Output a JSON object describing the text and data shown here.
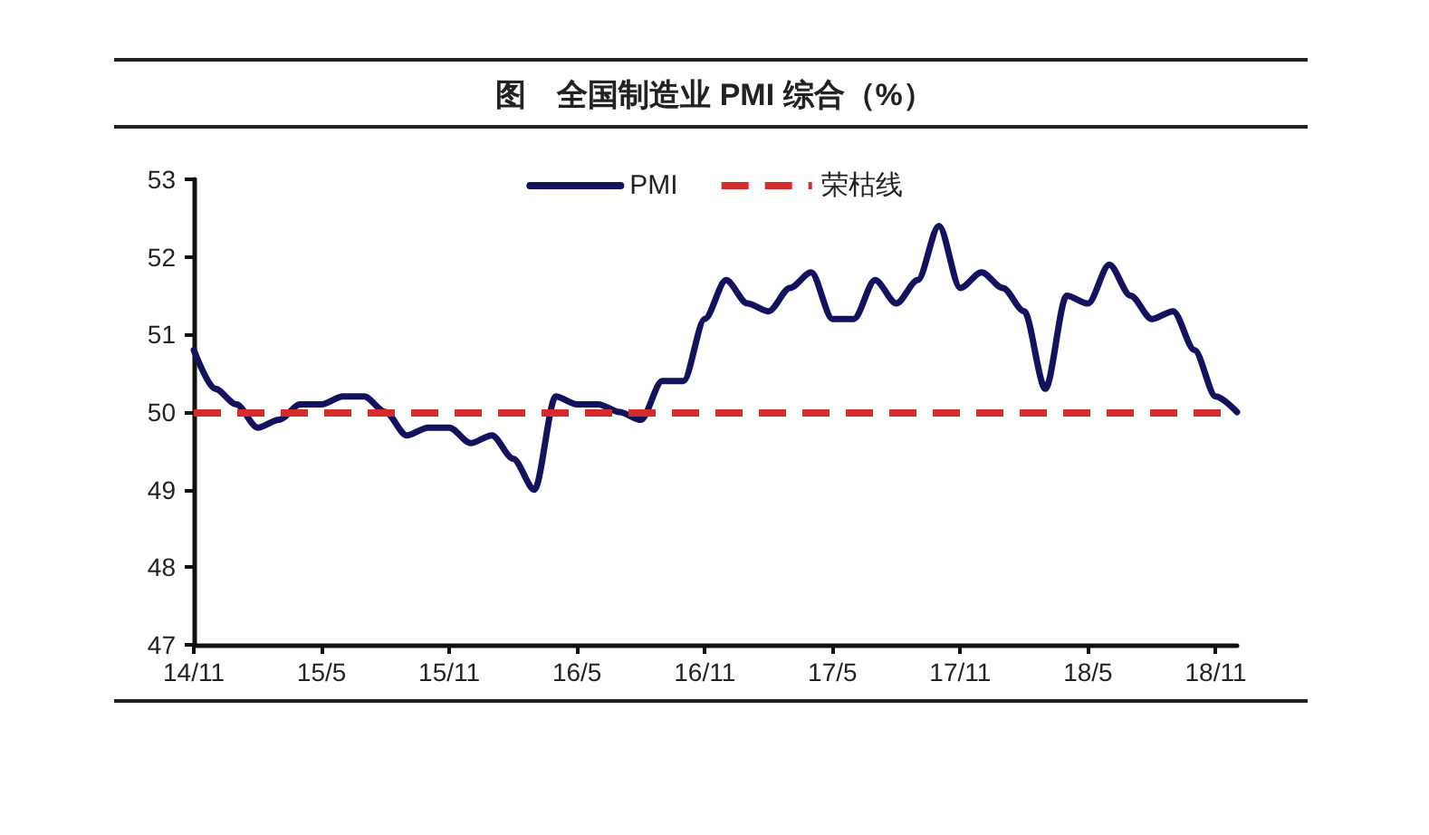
{
  "chart_data": {
    "type": "line",
    "title": "图　全国制造业 PMI 综合（%）",
    "categories": [
      "14/11",
      null,
      null,
      null,
      null,
      null,
      "15/5",
      null,
      null,
      null,
      null,
      null,
      "15/11",
      null,
      null,
      null,
      null,
      null,
      "16/5",
      null,
      null,
      null,
      null,
      null,
      "16/11",
      null,
      null,
      null,
      null,
      null,
      "17/5",
      null,
      null,
      null,
      null,
      null,
      "17/11",
      null,
      null,
      null,
      null,
      null,
      "18/5",
      null,
      null,
      null,
      null,
      null,
      "18/11",
      null
    ],
    "series": [
      {
        "name": "PMI",
        "color": "#12125e",
        "values": [
          50.8,
          50.3,
          50.1,
          49.8,
          49.9,
          50.1,
          50.1,
          50.2,
          50.2,
          50.0,
          49.7,
          49.8,
          49.8,
          49.6,
          49.7,
          49.4,
          49.0,
          50.2,
          50.1,
          50.1,
          50.0,
          49.9,
          50.4,
          50.4,
          51.2,
          51.7,
          51.4,
          51.3,
          51.6,
          51.8,
          51.2,
          51.2,
          51.7,
          51.4,
          51.7,
          52.4,
          51.6,
          51.8,
          51.6,
          51.3,
          50.3,
          51.5,
          51.4,
          51.9,
          51.5,
          51.2,
          51.3,
          50.8,
          50.2,
          50.0
        ]
      }
    ],
    "ylim": [
      47,
      53
    ],
    "yticks": [
      47,
      48,
      49,
      50,
      51,
      52,
      53
    ],
    "ref_lines": [
      {
        "axis": "y",
        "value": 50,
        "label": "荣枯线",
        "color": "#d62b2b",
        "line_style": "dashed"
      }
    ],
    "legend": "top",
    "grid": false,
    "marker": "none",
    "line_style": "solid"
  }
}
